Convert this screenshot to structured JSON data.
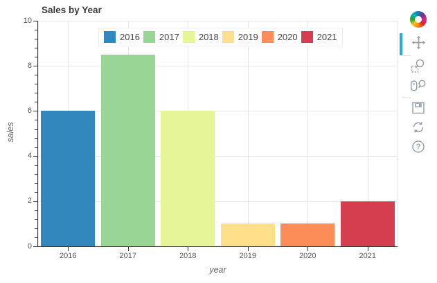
{
  "chart_data": {
    "type": "bar",
    "title": "Sales by Year",
    "categories": [
      "2016",
      "2017",
      "2018",
      "2019",
      "2020",
      "2021"
    ],
    "values": [
      6,
      8.5,
      6,
      1,
      1,
      2
    ],
    "bar_colors": [
      "#3288bd",
      "#99d594",
      "#e6f598",
      "#fee08b",
      "#fc8d59",
      "#d53e4f"
    ],
    "xlabel": "year",
    "ylabel": "sales",
    "ylim": [
      0,
      10
    ],
    "yticks": [
      0,
      2,
      4,
      6,
      8,
      10
    ],
    "minor_tick_step": 0.4,
    "bar_width_fraction": 0.9,
    "grid": "both",
    "legend": {
      "position": "top_center",
      "labels": [
        "2016",
        "2017",
        "2018",
        "2019",
        "2020",
        "2021"
      ]
    }
  },
  "toolbar": {
    "logo": "bokeh-logo",
    "active_indicator_color": "#26aae1",
    "icon_color": "#9aa0a6",
    "tools": [
      {
        "id": "pan",
        "active": true
      },
      {
        "id": "box-zoom",
        "active": false
      },
      {
        "id": "wheel-zoom",
        "active": false
      },
      {
        "id": "save",
        "active": false
      },
      {
        "id": "reset",
        "active": false
      },
      {
        "id": "help",
        "active": false
      }
    ]
  },
  "palette": {
    "grid_color": "#e6e6e6",
    "outline_color": "#e5e5e5",
    "axis_color": "#303030",
    "title_color": "#3a3a3a",
    "tick_label_color": "#515151",
    "axis_label_color": "#646464",
    "legend_label_color": "#444444"
  }
}
